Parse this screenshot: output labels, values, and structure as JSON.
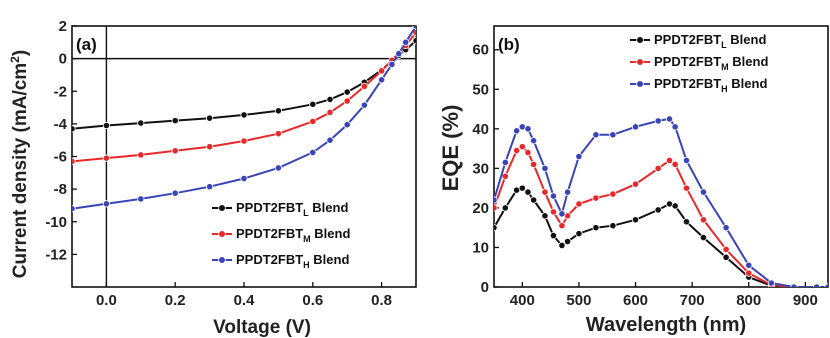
{
  "colors": {
    "L": "#111111",
    "M": "#e8282b",
    "H": "#3a44b8"
  },
  "chart_data": [
    {
      "id": "a",
      "type": "line",
      "panel_label": "(a)",
      "xlabel": "Voltage (V)",
      "ylabel": "Current density (mA/cm²)",
      "ylabel_main": "Current density (mA/cm",
      "ylabel_sup": "2",
      "ylabel_end": ")",
      "xlim": [
        -0.1,
        0.9
      ],
      "ylim": [
        -14,
        2
      ],
      "x_ticks": [
        0.0,
        0.2,
        0.4,
        0.6,
        0.8
      ],
      "x_tick_labels": [
        "0.0",
        "0.2",
        "0.4",
        "0.6",
        "0.8"
      ],
      "y_ticks": [
        2,
        0,
        -2,
        -4,
        -6,
        -8,
        -10,
        -12
      ],
      "y_tick_labels": [
        "2",
        "0",
        "-2",
        "-4",
        "-6",
        "-8",
        "-10",
        "-12"
      ],
      "reference_lines": {
        "x": 0,
        "y": 0
      },
      "legend_position": "bottom-right",
      "x": [
        -0.1,
        0.0,
        0.1,
        0.2,
        0.3,
        0.4,
        0.5,
        0.6,
        0.65,
        0.7,
        0.75,
        0.8,
        0.83,
        0.85,
        0.87,
        0.9
      ],
      "series": [
        {
          "name": "PPDT2FBT",
          "subscript": "L",
          "suffix": " Blend",
          "color_key": "L",
          "values": [
            -4.3,
            -4.1,
            -3.95,
            -3.8,
            -3.65,
            -3.45,
            -3.2,
            -2.8,
            -2.5,
            -2.05,
            -1.45,
            -0.7,
            -0.15,
            0.2,
            0.55,
            1.1
          ]
        },
        {
          "name": "PPDT2FBT",
          "subscript": "M",
          "suffix": " Blend",
          "color_key": "M",
          "values": [
            -6.3,
            -6.1,
            -5.9,
            -5.65,
            -5.4,
            -5.05,
            -4.6,
            -3.85,
            -3.3,
            -2.6,
            -1.7,
            -0.75,
            -0.1,
            0.35,
            0.8,
            1.6
          ]
        },
        {
          "name": "PPDT2FBT",
          "subscript": "H",
          "suffix": " Blend",
          "color_key": "H",
          "values": [
            -9.2,
            -8.9,
            -8.6,
            -8.25,
            -7.85,
            -7.35,
            -6.7,
            -5.75,
            -5.0,
            -4.05,
            -2.85,
            -1.3,
            -0.35,
            0.3,
            1.0,
            2.0
          ]
        }
      ]
    },
    {
      "id": "b",
      "type": "line",
      "panel_label": "(b)",
      "xlabel": "Wavelength (nm)",
      "ylabel": "EQE (%)",
      "xlim": [
        350,
        940
      ],
      "ylim": [
        0,
        66
      ],
      "x_ticks": [
        400,
        500,
        600,
        700,
        800,
        900
      ],
      "x_tick_labels": [
        "400",
        "500",
        "600",
        "700",
        "800",
        "900"
      ],
      "y_ticks": [
        0,
        10,
        20,
        30,
        40,
        50,
        60
      ],
      "y_tick_labels": [
        "0",
        "10",
        "20",
        "30",
        "40",
        "50",
        "60"
      ],
      "legend_position": "top-right",
      "x": [
        350,
        370,
        390,
        400,
        410,
        420,
        440,
        455,
        470,
        480,
        500,
        530,
        560,
        600,
        640,
        660,
        670,
        690,
        720,
        760,
        800,
        840,
        880,
        920,
        940
      ],
      "series": [
        {
          "name": "PPDT2FBT",
          "subscript": "L",
          "suffix": " Blend",
          "color_key": "L",
          "values": [
            15,
            20,
            24.5,
            25,
            24,
            22,
            18,
            13,
            10.5,
            11.5,
            13.5,
            15,
            15.5,
            17,
            19.5,
            21,
            20.5,
            16.5,
            12.5,
            7.5,
            2.5,
            0.3,
            0,
            0,
            0
          ]
        },
        {
          "name": "PPDT2FBT",
          "subscript": "M",
          "suffix": " Blend",
          "color_key": "M",
          "values": [
            20,
            28,
            34.5,
            35.5,
            34,
            31,
            24,
            19,
            15.5,
            18,
            21,
            22.5,
            23.5,
            26,
            30,
            32,
            31,
            25,
            17,
            9.5,
            3.5,
            0.5,
            0,
            0,
            0
          ]
        },
        {
          "name": "PPDT2FBT",
          "subscript": "H",
          "suffix": " Blend",
          "color_key": "H",
          "values": [
            22,
            31.5,
            39.5,
            40.5,
            40,
            37,
            30,
            23,
            18.5,
            24,
            33,
            38.5,
            38.5,
            40.5,
            42,
            42.5,
            40.5,
            32,
            24,
            15,
            5.5,
            1,
            0,
            0,
            0
          ]
        }
      ]
    }
  ]
}
